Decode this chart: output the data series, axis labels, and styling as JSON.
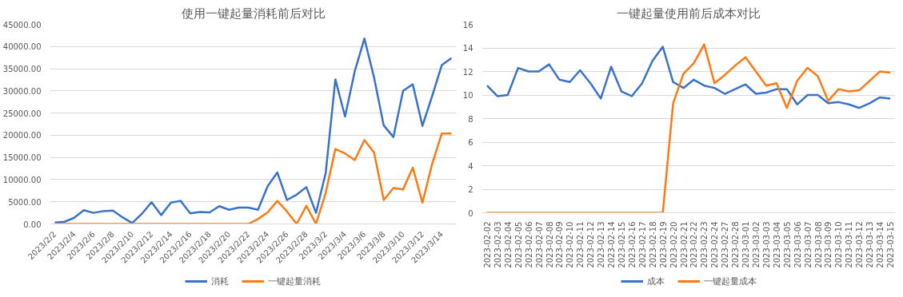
{
  "chart_data": [
    {
      "type": "line",
      "title": "使用一键起量消耗前后对比",
      "categories": [
        "2023/2/2",
        null,
        "2023/2/4",
        null,
        "2023/2/6",
        null,
        "2023/2/8",
        null,
        "2023/2/10",
        null,
        "2023/2/12",
        null,
        "2023/2/14",
        null,
        "2023/2/16",
        null,
        "2023/2/18",
        null,
        "2023/2/20",
        null,
        "2023/2/22",
        null,
        "2023/2/24",
        null,
        "2023/2/26",
        null,
        "2023/2/28",
        null,
        "2023/3/2",
        null,
        "2023/3/4",
        null,
        "2023/3/6",
        null,
        "2023/3/8",
        null,
        "2023/3/10",
        null,
        "2023/3/12",
        null,
        "2023/3/14",
        null
      ],
      "series": [
        {
          "name": "消耗",
          "color": "#3b72c9",
          "values": [
            300,
            500,
            1400,
            3100,
            2500,
            2900,
            3000,
            1500,
            200,
            2300,
            4900,
            2000,
            4800,
            5200,
            2400,
            2700,
            2600,
            4000,
            3200,
            3700,
            3700,
            3200,
            8500,
            11600,
            5400,
            6600,
            8300,
            2500,
            11500,
            32600,
            24200,
            34400,
            41800,
            33000,
            22200,
            19600,
            30000,
            31500,
            22100,
            28800,
            35800,
            37400
          ]
        },
        {
          "name": "一键起量消耗",
          "color": "#fd7a12",
          "values": [
            0,
            0,
            0,
            0,
            0,
            0,
            0,
            0,
            0,
            0,
            0,
            0,
            0,
            0,
            0,
            0,
            0,
            0,
            0,
            0,
            0,
            1100,
            2600,
            5200,
            2800,
            0,
            4100,
            0,
            7000,
            16900,
            15900,
            14400,
            18900,
            16100,
            5400,
            8100,
            7800,
            12700,
            4800,
            13500,
            20400,
            20400
          ]
        }
      ],
      "ylim": [
        0,
        45000
      ],
      "yticks": [
        {
          "value": 0,
          "label": "0.00"
        },
        {
          "value": 5000,
          "label": "5000.00"
        },
        {
          "value": 10000,
          "label": "10000.00"
        },
        {
          "value": 15000,
          "label": "15000.00"
        },
        {
          "value": 20000,
          "label": "20000.00"
        },
        {
          "value": 25000,
          "label": "25000.00"
        },
        {
          "value": 30000,
          "label": "30000.00"
        },
        {
          "value": 35000,
          "label": "35000.00"
        },
        {
          "value": 40000,
          "label": "40000.00"
        },
        {
          "value": 45000,
          "label": "45000.00"
        }
      ],
      "grid": "y",
      "legend": "bottom"
    },
    {
      "type": "line",
      "title": "一键起量使用前后成本对比",
      "categories": [
        "2023-02-02",
        "2023-02-03",
        "2023-02-04",
        "2023-02-05",
        "2023-02-06",
        "2023-02-07",
        "2023-02-08",
        "2023-02-09",
        "2023-02-10",
        "2023-02-11",
        "2023-02-12",
        "2023-02-13",
        "2023-02-14",
        "2023-02-15",
        "2023-02-16",
        "2023-02-17",
        "2023-02-18",
        "2023-02-19",
        "2023-02-20",
        "2023-02-21",
        "2023-02-22",
        "2023-02-23",
        "2023-02-24",
        "2023-02-27",
        "2023-02-28",
        "2023-03-01",
        "2023-03-02",
        "2023-03-03",
        "2023-03-04",
        "2023-03-05",
        "2023-03-06",
        "2023-03-07",
        "2023-03-08",
        "2023-03-09",
        "2023-03-10",
        "2023-03-11",
        "2023-03-12",
        "2023-03-13",
        "2023-03-14",
        "2023-03-15"
      ],
      "series": [
        {
          "name": "成本",
          "color": "#3b72c9",
          "values": [
            10.8,
            9.9,
            10.0,
            12.3,
            12.0,
            12.0,
            12.6,
            11.3,
            11.1,
            12.1,
            11.0,
            9.7,
            12.4,
            10.3,
            9.9,
            11.0,
            12.9,
            14.1,
            11.1,
            10.6,
            11.3,
            10.8,
            10.6,
            10.1,
            10.5,
            10.9,
            10.1,
            10.2,
            10.5,
            10.5,
            9.2,
            10.0,
            10.0,
            9.3,
            9.4,
            9.2,
            8.9,
            9.3,
            9.8,
            9.7
          ]
        },
        {
          "name": "一键起量成本",
          "color": "#fd7a12",
          "values": [
            0,
            0,
            0,
            0,
            0,
            0,
            0,
            0,
            0,
            0,
            0,
            0,
            0,
            0,
            0,
            0,
            0,
            0,
            9.3,
            11.8,
            12.7,
            14.3,
            11.0,
            11.7,
            12.5,
            13.2,
            12.0,
            10.8,
            11.0,
            8.9,
            11.2,
            12.3,
            11.6,
            9.5,
            10.5,
            10.3,
            10.4,
            11.2,
            12.0,
            11.9
          ]
        }
      ],
      "ylim": [
        0,
        16
      ],
      "yticks": [
        0,
        2,
        4,
        6,
        8,
        10,
        12,
        14,
        16
      ],
      "grid": "y",
      "legend": "bottom"
    }
  ]
}
